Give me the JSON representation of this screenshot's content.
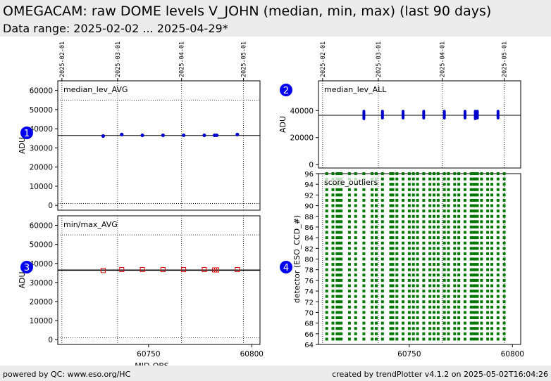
{
  "header": {
    "title": "OMEGACAM: raw DOME levels V_JOHN (median, min, max) (last 90 days)",
    "subtitle": "Data range: 2025-02-02 ... 2025-04-29*"
  },
  "footer": {
    "left": "powered by QC: www.eso.org/HC",
    "right": "created by trendPlotter v4.1.2 on 2025-05-02T16:04:26"
  },
  "chart_data": [
    {
      "id": "median_lev_AVG",
      "type": "scatter",
      "panel_label": "median_lev_AVG",
      "badge": "1",
      "ylabel": "ADU",
      "xlabel": "",
      "xlim": [
        60706,
        60804
      ],
      "ylim": [
        -2500,
        65000
      ],
      "yticks": [
        0,
        10000,
        20000,
        30000,
        40000,
        50000,
        60000
      ],
      "date_lines": [
        {
          "mjd": 60708,
          "label": "2025-02-01"
        },
        {
          "mjd": 60735,
          "label": "2025-03-01"
        },
        {
          "mjd": 60766,
          "label": "2025-04-01"
        },
        {
          "mjd": 60796,
          "label": "2025-05-01"
        }
      ],
      "hlines_dotted": [
        1000,
        55000
      ],
      "reference_line": 36500,
      "grid": false,
      "series": [
        {
          "marker": "dot",
          "color": "#0000cc",
          "x": [
            60728,
            60737,
            60747,
            60757,
            60767,
            60777,
            60782,
            60783,
            60793
          ],
          "y": [
            36200,
            37000,
            36600,
            36600,
            36600,
            36600,
            36600,
            36600,
            37000
          ]
        }
      ]
    },
    {
      "id": "median_lev_ALL",
      "type": "scatter",
      "panel_label": "median_lev_ALL",
      "badge": "2",
      "ylabel": "ADU",
      "xlabel": "",
      "xlim": [
        60706,
        60804
      ],
      "ylim": [
        -2500,
        62000
      ],
      "yticks": [
        0,
        20000,
        40000
      ],
      "date_lines": [
        {
          "mjd": 60708,
          "label": "2025-02-01"
        },
        {
          "mjd": 60735,
          "label": "2025-03-01"
        },
        {
          "mjd": 60766,
          "label": "2025-04-01"
        },
        {
          "mjd": 60796,
          "label": "2025-05-01"
        }
      ],
      "reference_line": 36500,
      "grid": false,
      "series": [
        {
          "marker": "dot-column",
          "color": "#0000cc",
          "x": [
            60728,
            60737,
            60747,
            60757,
            60767,
            60777,
            60782,
            60783,
            60793
          ],
          "ymin": [
            34000,
            34500,
            34500,
            34500,
            34500,
            34500,
            34000,
            34500,
            34500
          ],
          "ymax": [
            39500,
            39500,
            39500,
            39500,
            39500,
            39500,
            39500,
            39500,
            39500
          ]
        }
      ]
    },
    {
      "id": "min_max_AVG",
      "type": "scatter",
      "panel_label": "min/max_AVG",
      "badge": "3",
      "ylabel": "ADU",
      "xlabel": "MJD-OBS",
      "xlim": [
        60706,
        60804
      ],
      "ylim": [
        -2500,
        65000
      ],
      "yticks": [
        0,
        10000,
        20000,
        30000,
        40000,
        50000,
        60000
      ],
      "xticks": [
        60750,
        60800
      ],
      "hlines_dotted": [
        1000,
        55000
      ],
      "date_line_mjds": [
        60708,
        60735,
        60766,
        60796
      ],
      "reference_line": 36500,
      "grid": false,
      "series": [
        {
          "marker": "open-square",
          "color": "#dd0000",
          "x": [
            60728,
            60737,
            60747,
            60757,
            60767,
            60777,
            60782,
            60783,
            60793
          ],
          "y": [
            36300,
            36800,
            36800,
            36800,
            36800,
            36800,
            36600,
            36600,
            36800
          ]
        }
      ]
    },
    {
      "id": "score_outliers",
      "type": "scatter",
      "panel_label": "score_outliers",
      "badge": "4",
      "ylabel": "detector (ESO_CCD_#)",
      "xlabel": "",
      "xlim": [
        60706,
        60804
      ],
      "ylim": [
        64,
        96
      ],
      "yticks": [
        64,
        66,
        68,
        70,
        72,
        74,
        76,
        78,
        80,
        82,
        84,
        86,
        88,
        90,
        92,
        94,
        96
      ],
      "xticks": [
        60750,
        60800
      ],
      "date_line_mjds": [
        60708,
        60735,
        60766,
        60796
      ],
      "grid": false,
      "series": [
        {
          "marker": "green-square",
          "color": "#007700",
          "x": [
            60710,
            60713,
            60715,
            60716,
            60717,
            60721,
            60724,
            60728,
            60732,
            60734,
            60737,
            60741,
            60742,
            60744,
            60747,
            60750,
            60752,
            60754,
            60757,
            60760,
            60762,
            60764,
            60767,
            60769,
            60772,
            60774,
            60777,
            60780,
            60781,
            60782,
            60783,
            60785,
            60788,
            60790,
            60793,
            60796
          ],
          "detectors_from": 65,
          "detectors_to": 96
        }
      ]
    }
  ]
}
